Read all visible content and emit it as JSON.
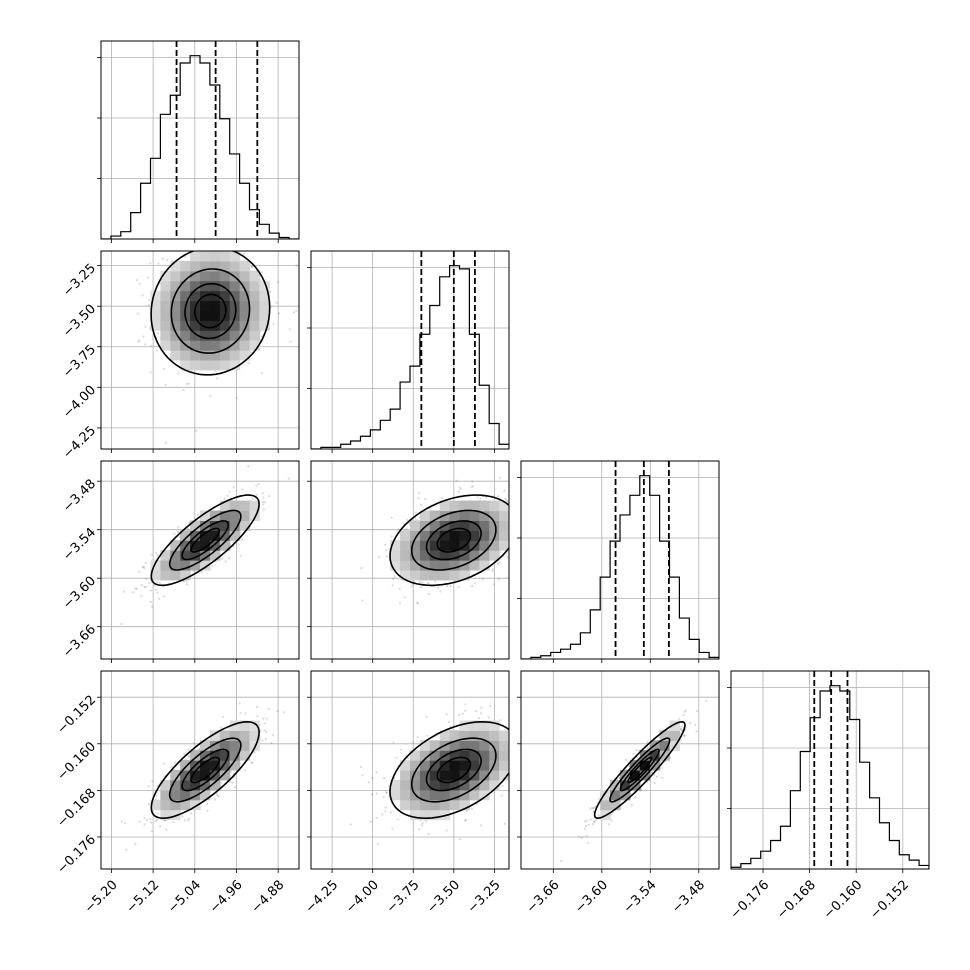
{
  "chart_data": {
    "type": "corner",
    "parameters": [
      {
        "range": [
          -5.22,
          -4.84
        ],
        "ticks": [
          "−5.20",
          "−5.12",
          "−5.04",
          "−4.96",
          "−4.88"
        ],
        "tick_values": [
          -5.2,
          -5.12,
          -5.04,
          -4.96,
          -4.88
        ],
        "quantiles": [
          -5.075,
          -5.0,
          -4.92
        ],
        "hist_counts": [
          0,
          2,
          5,
          18,
          38,
          55,
          85,
          98,
          120,
          125,
          120,
          105,
          82,
          58,
          38,
          20,
          10,
          4,
          1,
          0
        ]
      },
      {
        "range": [
          -4.38,
          -3.16
        ],
        "ticks": [
          "−4.25",
          "−4.00",
          "−3.75",
          "−3.50",
          "−3.25"
        ],
        "tick_values": [
          -4.25,
          -4.0,
          -3.75,
          -3.5,
          -3.25
        ],
        "quantiles": [
          -3.7,
          -3.5,
          -3.37
        ],
        "hist_counts": [
          0,
          1,
          1,
          3,
          5,
          8,
          12,
          18,
          25,
          42,
          52,
          72,
          90,
          108,
          115,
          113,
          72,
          40,
          16,
          3
        ]
      },
      {
        "range": [
          -3.7,
          -3.455
        ],
        "ticks": [
          "−3.66",
          "−3.60",
          "−3.54",
          "−3.48"
        ],
        "tick_values": [
          -3.66,
          -3.6,
          -3.54,
          -3.48
        ],
        "quantiles": [
          -3.583,
          -3.548,
          -3.517
        ],
        "hist_counts": [
          0,
          1,
          2,
          4,
          6,
          9,
          16,
          30,
          50,
          72,
          88,
          100,
          112,
          100,
          72,
          50,
          25,
          12,
          4,
          1
        ]
      },
      {
        "range": [
          -0.1815,
          -0.1475
        ],
        "ticks": [
          "−0.176",
          "−0.168",
          "−0.160",
          "−0.152"
        ],
        "tick_values": [
          -0.176,
          -0.168,
          -0.16,
          -0.152
        ],
        "quantiles": [
          -0.1672,
          -0.1643,
          -0.1615
        ],
        "hist_counts": [
          1,
          3,
          6,
          10,
          16,
          24,
          44,
          66,
          85,
          100,
          103,
          100,
          84,
          60,
          40,
          26,
          16,
          8,
          5,
          2
        ]
      }
    ],
    "pairs": [
      {
        "row": 1,
        "col": 0,
        "mean": [
          -5.01,
          -3.53
        ],
        "std": [
          0.055,
          0.19
        ],
        "corr": 0.05
      },
      {
        "row": 2,
        "col": 0,
        "mean": [
          -5.02,
          -3.553
        ],
        "std": [
          0.05,
          0.027
        ],
        "corr": 0.8
      },
      {
        "row": 2,
        "col": 1,
        "mean": [
          -3.5,
          -3.553
        ],
        "std": [
          0.19,
          0.027
        ],
        "corr": 0.35
      },
      {
        "row": 3,
        "col": 0,
        "mean": [
          -5.02,
          -0.1645
        ],
        "std": [
          0.05,
          0.004
        ],
        "corr": 0.78
      },
      {
        "row": 3,
        "col": 1,
        "mean": [
          -3.5,
          -0.1645
        ],
        "std": [
          0.19,
          0.004
        ],
        "corr": 0.45
      },
      {
        "row": 3,
        "col": 2,
        "mean": [
          -3.553,
          -0.1645
        ],
        "std": [
          0.027,
          0.004
        ],
        "corr": 0.93
      }
    ]
  }
}
